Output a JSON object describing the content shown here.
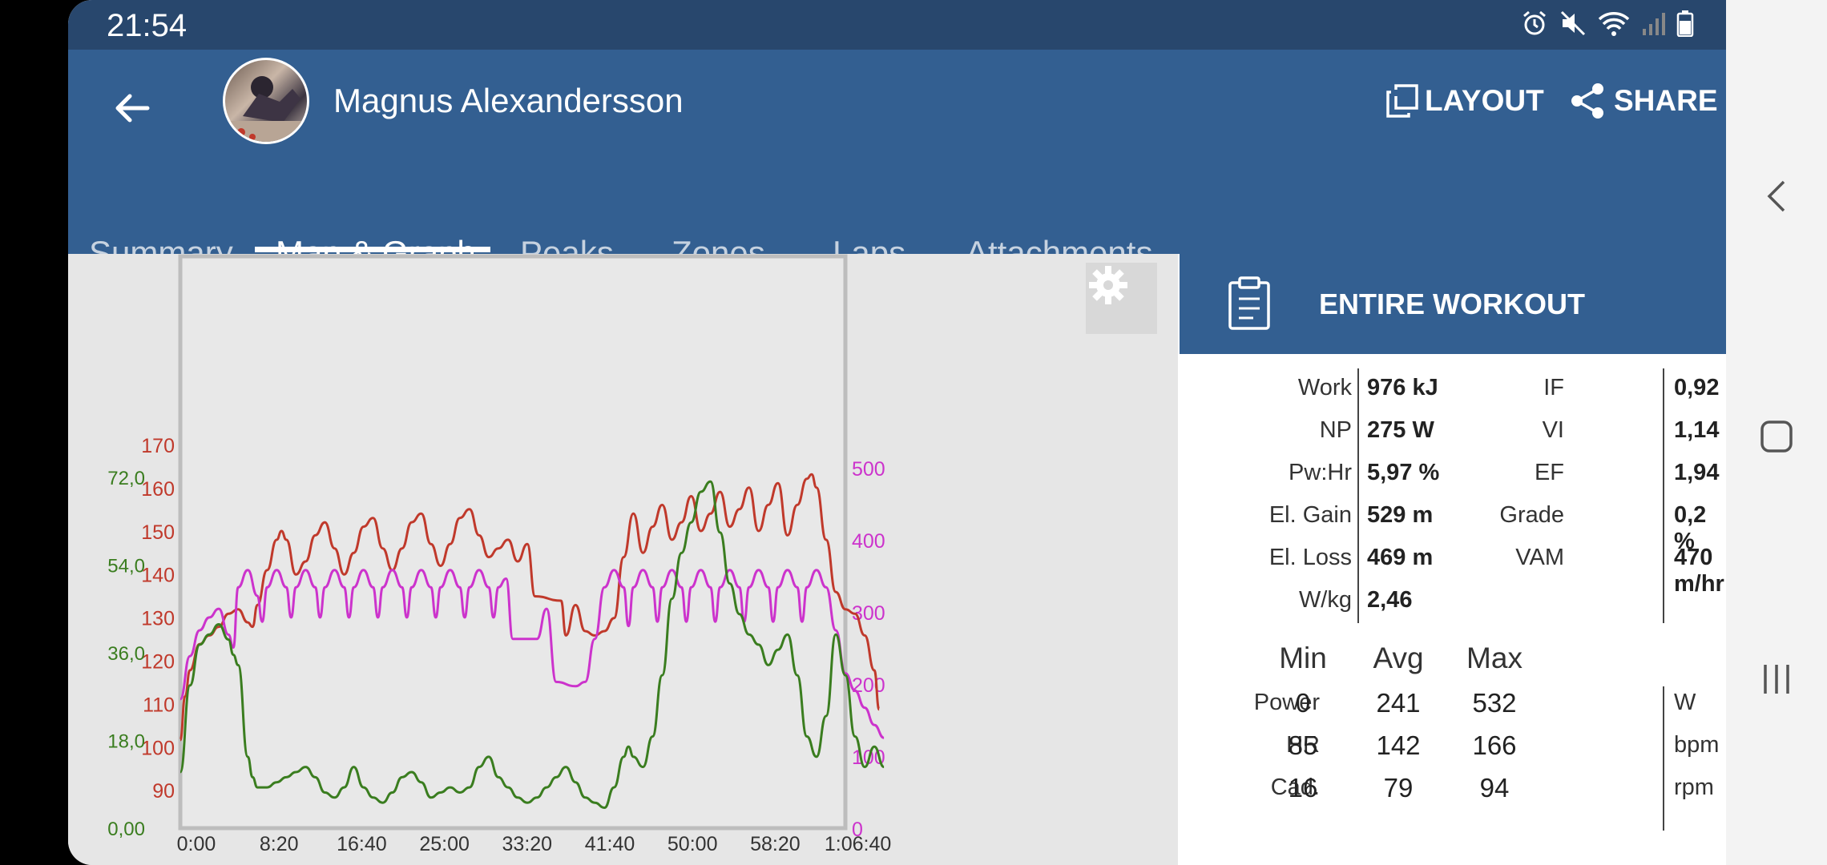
{
  "status": {
    "time": "21:54"
  },
  "header": {
    "user_name": "Magnus Alexandersson",
    "layout_label": "LAYOUT",
    "share_label": "SHARE"
  },
  "tabs": [
    {
      "label": "Summary",
      "active": false
    },
    {
      "label": "Map & Graph",
      "active": true
    },
    {
      "label": "Peaks",
      "active": false
    },
    {
      "label": "Zones",
      "active": false
    },
    {
      "label": "Laps",
      "active": false
    },
    {
      "label": "Attachments",
      "active": false
    }
  ],
  "chart_data": {
    "type": "line",
    "x_ticks": [
      "0:00",
      "8:20",
      "16:40",
      "25:00",
      "33:20",
      "41:40",
      "50:00",
      "58:20",
      "1:06:40"
    ],
    "xlim_minutes": [
      0,
      69
    ],
    "axes": {
      "hr": {
        "ticks": [
          "170",
          "160",
          "150",
          "140",
          "130",
          "120",
          "110",
          "100",
          "90"
        ],
        "color": "#c0392b",
        "ylim": [
          81,
          173
        ]
      },
      "speed": {
        "ticks": [
          "72,0",
          "54,0",
          "36,0",
          "18,0",
          "0,00"
        ],
        "color": "#3a7d1f",
        "ylim": [
          0,
          77
        ]
      },
      "power": {
        "ticks": [
          "500",
          "400",
          "300",
          "200",
          "100",
          "0"
        ],
        "color": "#cc33cc",
        "ylim": [
          0,
          500
        ]
      }
    },
    "series": [
      {
        "color": "#c0392b",
        "axis": "hr",
        "points": [
          [
            0,
            102
          ],
          [
            0.5,
            112
          ],
          [
            1,
            118
          ],
          [
            2,
            124
          ],
          [
            3,
            126
          ],
          [
            4,
            128
          ],
          [
            5,
            131
          ],
          [
            6,
            132
          ],
          [
            7,
            129
          ],
          [
            7.5,
            128
          ],
          [
            8,
            133
          ],
          [
            9,
            141
          ],
          [
            10,
            148
          ],
          [
            10.5,
            150
          ],
          [
            11,
            148
          ],
          [
            12,
            140
          ],
          [
            13,
            143
          ],
          [
            14,
            149
          ],
          [
            15,
            152
          ],
          [
            16,
            146
          ],
          [
            17,
            140
          ],
          [
            18,
            145
          ],
          [
            19,
            151
          ],
          [
            20,
            153
          ],
          [
            21,
            146
          ],
          [
            22,
            141
          ],
          [
            23,
            146
          ],
          [
            24,
            152
          ],
          [
            25,
            154
          ],
          [
            26,
            147
          ],
          [
            27,
            142
          ],
          [
            28,
            147
          ],
          [
            29,
            153
          ],
          [
            30,
            155
          ],
          [
            31,
            149
          ],
          [
            32,
            144
          ],
          [
            33,
            146
          ],
          [
            34,
            148
          ],
          [
            35,
            143
          ],
          [
            36,
            147
          ],
          [
            36.8,
            135
          ],
          [
            39.5,
            134
          ],
          [
            40,
            126
          ],
          [
            41,
            133
          ],
          [
            42,
            127
          ],
          [
            43,
            126
          ],
          [
            44,
            127
          ],
          [
            45,
            130
          ],
          [
            46,
            144
          ],
          [
            47,
            154
          ],
          [
            48,
            145
          ],
          [
            49,
            151
          ],
          [
            50,
            156
          ],
          [
            51,
            148
          ],
          [
            52,
            152
          ],
          [
            53,
            158
          ],
          [
            54,
            150
          ],
          [
            55,
            154
          ],
          [
            56,
            159
          ],
          [
            57,
            151
          ],
          [
            58,
            155
          ],
          [
            59,
            160
          ],
          [
            60,
            150
          ],
          [
            61,
            156
          ],
          [
            62,
            161
          ],
          [
            63,
            149
          ],
          [
            64,
            156
          ],
          [
            65,
            162
          ],
          [
            65.5,
            163
          ],
          [
            66,
            160
          ],
          [
            67,
            148
          ],
          [
            68,
            136
          ],
          [
            69,
            132
          ],
          [
            70,
            131
          ],
          [
            71,
            126
          ],
          [
            72,
            118
          ],
          [
            72.5,
            109
          ]
        ]
      },
      {
        "color": "#cc33cc",
        "axis": "power",
        "points": [
          [
            0,
            150
          ],
          [
            1,
            200
          ],
          [
            2,
            230
          ],
          [
            3,
            245
          ],
          [
            4,
            255
          ],
          [
            5,
            225
          ],
          [
            5.5,
            210
          ],
          [
            6,
            280
          ],
          [
            7,
            300
          ],
          [
            8,
            270
          ],
          [
            8.5,
            240
          ],
          [
            9,
            280
          ],
          [
            10,
            300
          ],
          [
            11,
            280
          ],
          [
            11.5,
            245
          ],
          [
            12,
            280
          ],
          [
            13,
            300
          ],
          [
            14,
            280
          ],
          [
            14.5,
            245
          ],
          [
            15,
            280
          ],
          [
            16,
            300
          ],
          [
            17,
            280
          ],
          [
            17.5,
            245
          ],
          [
            18,
            280
          ],
          [
            19,
            300
          ],
          [
            20,
            280
          ],
          [
            20.5,
            245
          ],
          [
            21,
            280
          ],
          [
            22,
            300
          ],
          [
            23,
            280
          ],
          [
            23.5,
            245
          ],
          [
            24,
            280
          ],
          [
            25,
            300
          ],
          [
            26,
            280
          ],
          [
            26.5,
            245
          ],
          [
            27,
            280
          ],
          [
            28,
            300
          ],
          [
            29,
            280
          ],
          [
            29.5,
            245
          ],
          [
            30,
            280
          ],
          [
            31,
            300
          ],
          [
            32,
            280
          ],
          [
            32.5,
            245
          ],
          [
            33,
            280
          ],
          [
            33.8,
            290
          ],
          [
            34.5,
            220
          ],
          [
            37,
            220
          ],
          [
            38,
            255
          ],
          [
            39,
            170
          ],
          [
            41,
            165
          ],
          [
            42,
            170
          ],
          [
            43,
            220
          ],
          [
            44,
            280
          ],
          [
            45,
            300
          ],
          [
            46,
            280
          ],
          [
            46.5,
            235
          ],
          [
            47,
            280
          ],
          [
            48,
            300
          ],
          [
            49,
            280
          ],
          [
            49.5,
            240
          ],
          [
            50,
            280
          ],
          [
            51,
            300
          ],
          [
            52,
            280
          ],
          [
            52.5,
            240
          ],
          [
            53,
            280
          ],
          [
            54,
            300
          ],
          [
            55,
            280
          ],
          [
            55.5,
            240
          ],
          [
            56,
            280
          ],
          [
            57,
            300
          ],
          [
            58,
            280
          ],
          [
            58.5,
            240
          ],
          [
            59,
            280
          ],
          [
            60,
            300
          ],
          [
            61,
            280
          ],
          [
            61.5,
            240
          ],
          [
            62,
            280
          ],
          [
            63,
            300
          ],
          [
            64,
            280
          ],
          [
            64.5,
            240
          ],
          [
            65,
            280
          ],
          [
            66,
            300
          ],
          [
            67,
            280
          ],
          [
            68,
            230
          ],
          [
            69,
            180
          ],
          [
            70,
            160
          ],
          [
            71,
            140
          ],
          [
            72,
            120
          ],
          [
            73,
            105
          ]
        ]
      },
      {
        "color": "#3a7d1f",
        "axis": "speed",
        "points": [
          [
            0,
            11
          ],
          [
            1,
            28
          ],
          [
            2,
            36
          ],
          [
            3,
            38
          ],
          [
            4,
            40
          ],
          [
            5,
            37
          ],
          [
            5.5,
            34
          ],
          [
            6,
            32
          ],
          [
            7,
            14
          ],
          [
            7.5,
            10
          ],
          [
            8,
            8
          ],
          [
            9,
            8
          ],
          [
            10,
            9
          ],
          [
            11,
            10
          ],
          [
            12,
            11
          ],
          [
            13,
            12
          ],
          [
            14,
            10
          ],
          [
            15,
            7
          ],
          [
            16,
            6
          ],
          [
            17,
            8
          ],
          [
            18,
            12
          ],
          [
            19,
            8
          ],
          [
            20,
            6
          ],
          [
            21,
            5
          ],
          [
            22,
            7
          ],
          [
            23,
            10
          ],
          [
            24,
            11
          ],
          [
            25,
            9
          ],
          [
            26,
            6
          ],
          [
            27,
            7
          ],
          [
            28,
            8
          ],
          [
            29,
            7
          ],
          [
            30,
            8
          ],
          [
            31,
            12
          ],
          [
            32,
            14
          ],
          [
            33,
            10
          ],
          [
            34,
            8
          ],
          [
            35,
            6
          ],
          [
            36,
            5
          ],
          [
            37,
            6
          ],
          [
            38,
            8
          ],
          [
            39,
            10
          ],
          [
            40,
            12
          ],
          [
            41,
            9
          ],
          [
            42,
            6
          ],
          [
            43,
            5
          ],
          [
            44,
            4
          ],
          [
            45,
            8
          ],
          [
            46,
            14
          ],
          [
            46.5,
            16
          ],
          [
            47,
            14
          ],
          [
            48,
            12
          ],
          [
            49,
            18
          ],
          [
            50,
            30
          ],
          [
            51,
            45
          ],
          [
            52,
            54
          ],
          [
            53,
            60
          ],
          [
            54,
            66
          ],
          [
            55,
            68
          ],
          [
            56,
            58
          ],
          [
            57,
            48
          ],
          [
            58,
            42
          ],
          [
            59,
            38
          ],
          [
            60,
            36
          ],
          [
            61,
            32
          ],
          [
            62,
            35
          ],
          [
            63,
            38
          ],
          [
            64,
            30
          ],
          [
            65,
            18
          ],
          [
            66,
            14
          ],
          [
            67,
            22
          ],
          [
            68,
            38
          ],
          [
            69,
            30
          ],
          [
            70,
            18
          ],
          [
            71,
            12
          ],
          [
            72,
            16
          ],
          [
            73,
            12
          ]
        ]
      }
    ]
  },
  "stats": {
    "title": "ENTIRE WORKOUT",
    "left": [
      {
        "label": "Work",
        "value": "976 kJ"
      },
      {
        "label": "NP",
        "value": "275 W"
      },
      {
        "label": "Pw:Hr",
        "value": "5,97 %"
      },
      {
        "label": "El. Gain",
        "value": "529 m"
      },
      {
        "label": "El. Loss",
        "value": "469 m"
      },
      {
        "label": "W/kg",
        "value": "2,46"
      }
    ],
    "right": [
      {
        "label": "IF",
        "value": "0,92"
      },
      {
        "label": "VI",
        "value": "1,14"
      },
      {
        "label": "EF",
        "value": "1,94"
      },
      {
        "label": "Grade",
        "value": "0,2 %"
      },
      {
        "label": "VAM",
        "value": "470 m/hr"
      }
    ],
    "table": {
      "headers": [
        "Min",
        "Avg",
        "Max"
      ],
      "rows": [
        {
          "label": "Power",
          "min": "0",
          "avg": "241",
          "max": "532",
          "unit": "W"
        },
        {
          "label": "HR",
          "min": "85",
          "avg": "142",
          "max": "166",
          "unit": "bpm"
        },
        {
          "label": "Cad.",
          "min": "16",
          "avg": "79",
          "max": "94",
          "unit": "rpm"
        }
      ]
    }
  }
}
